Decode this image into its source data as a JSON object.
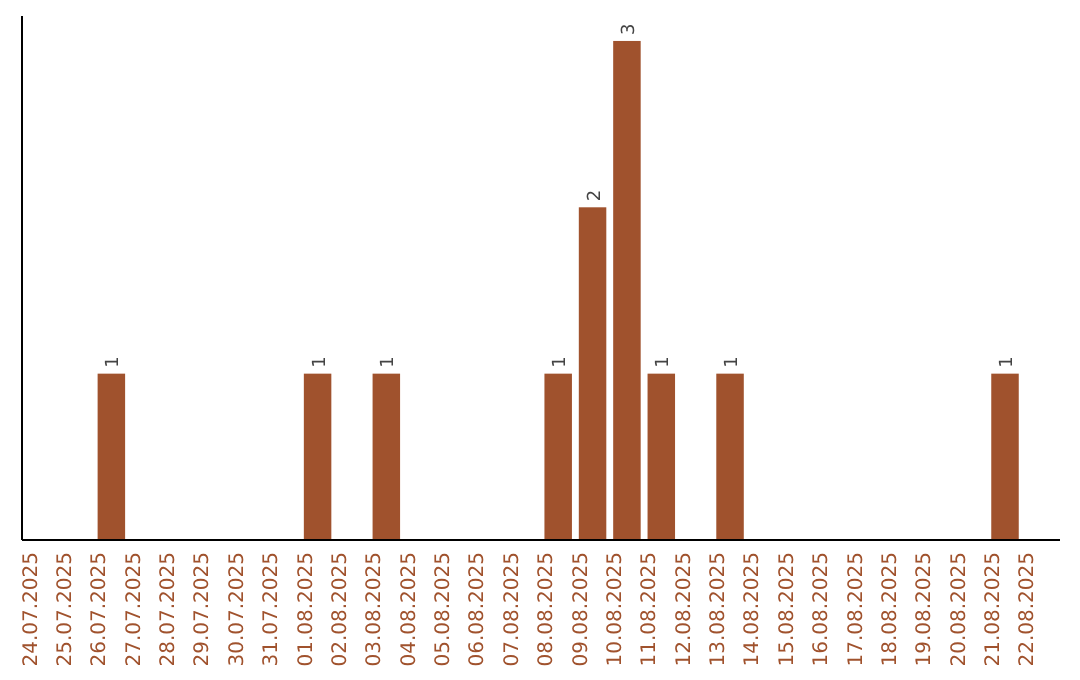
{
  "chart_data": {
    "type": "bar",
    "categories": [
      "24.07.2025",
      "25.07.2025",
      "26.07.2025",
      "27.07.2025",
      "28.07.2025",
      "29.07.2025",
      "30.07.2025",
      "31.07.2025",
      "01.08.2025",
      "02.08.2025",
      "03.08.2025",
      "04.08.2025",
      "05.08.2025",
      "06.08.2025",
      "07.08.2025",
      "08.08.2025",
      "09.08.2025",
      "10.08.2025",
      "11.08.2025",
      "12.08.2025",
      "13.08.2025",
      "14.08.2025",
      "15.08.2025",
      "16.08.2025",
      "17.08.2025",
      "18.08.2025",
      "19.08.2025",
      "20.08.2025",
      "21.08.2025",
      "22.08.2025"
    ],
    "values": [
      0,
      0,
      1,
      0,
      0,
      0,
      0,
      0,
      1,
      0,
      1,
      0,
      0,
      0,
      0,
      1,
      2,
      3,
      1,
      0,
      1,
      0,
      0,
      0,
      0,
      0,
      0,
      0,
      1,
      0
    ],
    "value_labels": [
      null,
      null,
      "1",
      null,
      null,
      null,
      null,
      null,
      "1",
      null,
      "1",
      null,
      null,
      null,
      null,
      "1",
      "2",
      "3",
      "1",
      null,
      "1",
      null,
      null,
      null,
      null,
      null,
      null,
      null,
      "1",
      null
    ],
    "color": "#a0522d",
    "ylim": [
      0,
      3.15
    ],
    "tick_labels": "x"
  }
}
